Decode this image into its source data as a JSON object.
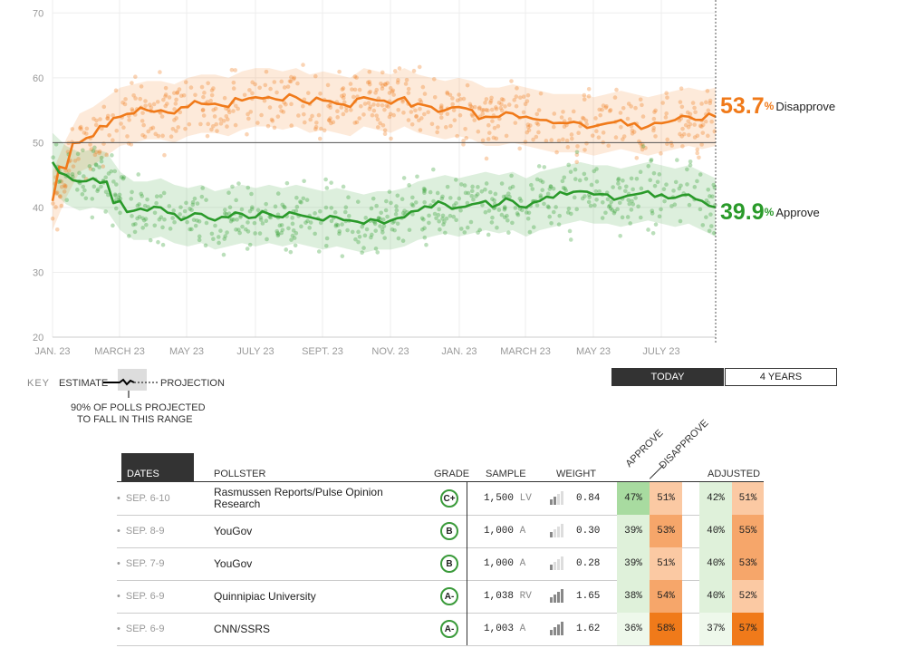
{
  "chart_data": {
    "type": "line",
    "x_tick_labels": [
      "JAN. 23",
      "MARCH 23",
      "MAY 23",
      "JULY 23",
      "SEPT. 23",
      "NOV. 23",
      "JAN. 23",
      "MARCH 23",
      "MAY 23",
      "JULY 23"
    ],
    "y_ticks": [
      20,
      30,
      40,
      50,
      60,
      70
    ],
    "ylim": [
      20,
      72
    ],
    "reference_line": 50,
    "grid": true,
    "series": [
      {
        "name": "Disapprove",
        "color": "#f07a1a",
        "final_value": "53.7",
        "values": [
          41,
          46,
          50,
          51,
          52.5,
          54,
          54.5,
          55,
          55,
          54.5,
          55.5,
          56,
          56,
          55.5,
          56.5,
          57,
          57,
          56.5,
          57,
          56,
          56.5,
          56,
          55.5,
          57,
          56.5,
          56,
          57,
          56,
          55.5,
          55,
          55.5,
          55,
          54,
          54,
          54.5,
          54,
          53.5,
          53,
          53,
          53,
          52.5,
          53,
          53.5,
          53,
          52.5,
          53,
          53.5,
          54,
          53.5,
          54
        ]
      },
      {
        "name": "Approve",
        "color": "#2a9a2a",
        "final_value": "39.9",
        "values": [
          47,
          45,
          44,
          44.5,
          44,
          41,
          39.5,
          39.5,
          40,
          39,
          38.5,
          39,
          38,
          38.5,
          39,
          38.5,
          39,
          38.5,
          39,
          38.5,
          38,
          38.5,
          38,
          37.5,
          38,
          38,
          38.5,
          39.5,
          40,
          40.5,
          40,
          40.5,
          41,
          40.5,
          41,
          40,
          41,
          41.5,
          42,
          42.5,
          42,
          42,
          41.5,
          42,
          42.5,
          42,
          41.5,
          42,
          41,
          40
        ]
      }
    ]
  },
  "labels": {
    "pct": "%",
    "disapprove_value": "53.7",
    "disapprove_label": "Disapprove",
    "approve_value": "39.9",
    "approve_label": "Approve"
  },
  "key": {
    "title": "KEY",
    "estimate": "ESTIMATE",
    "projection": "PROJECTION",
    "range_note_1": "90% OF POLLS PROJECTED",
    "range_note_2": "TO FALL IN THIS RANGE"
  },
  "toggle": {
    "today": "TODAY",
    "four_years": "4 YEARS"
  },
  "colors": {
    "approve": "#2a9a2a",
    "disapprove": "#f07a1a"
  },
  "table": {
    "headers": {
      "dates": "DATES",
      "pollster": "POLLSTER",
      "grade": "GRADE",
      "sample": "SAMPLE",
      "weight": "WEIGHT",
      "approve": "APPROVE",
      "disapprove": "DISAPPROVE",
      "adjusted": "ADJUSTED"
    },
    "rows": [
      {
        "dates": "SEP. 6-10",
        "pollster": "Rasmussen Reports/Pulse Opinion Research",
        "grade": "C+",
        "sample": "1,500",
        "pop": "LV",
        "weight": "0.84",
        "bars": 2,
        "approve": "47%",
        "disapprove": "51%",
        "adj_approve": "42%",
        "adj_disapprove": "51%"
      },
      {
        "dates": "SEP. 8-9",
        "pollster": "YouGov",
        "grade": "B",
        "sample": "1,000",
        "pop": "A",
        "weight": "0.30",
        "bars": 1,
        "approve": "39%",
        "disapprove": "53%",
        "adj_approve": "40%",
        "adj_disapprove": "55%"
      },
      {
        "dates": "SEP. 7-9",
        "pollster": "YouGov",
        "grade": "B",
        "sample": "1,000",
        "pop": "A",
        "weight": "0.28",
        "bars": 1,
        "approve": "39%",
        "disapprove": "51%",
        "adj_approve": "40%",
        "adj_disapprove": "53%"
      },
      {
        "dates": "SEP. 6-9",
        "pollster": "Quinnipiac University",
        "grade": "A-",
        "sample": "1,038",
        "pop": "RV",
        "weight": "1.65",
        "bars": 4,
        "approve": "38%",
        "disapprove": "54%",
        "adj_approve": "40%",
        "adj_disapprove": "52%"
      },
      {
        "dates": "SEP. 6-9",
        "pollster": "CNN/SSRS",
        "grade": "A-",
        "sample": "1,003",
        "pop": "A",
        "weight": "1.62",
        "bars": 4,
        "approve": "36%",
        "disapprove": "58%",
        "adj_approve": "37%",
        "adj_disapprove": "57%"
      }
    ]
  }
}
